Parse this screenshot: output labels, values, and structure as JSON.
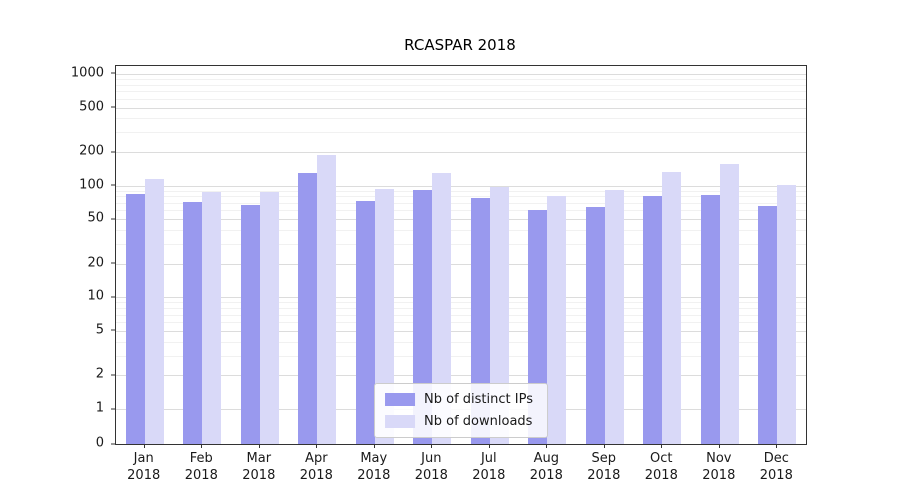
{
  "title": "RCASPAR 2018",
  "chart_data": {
    "type": "bar",
    "title": "RCASPAR 2018",
    "xlabel": "",
    "ylabel": "",
    "yscale": "symlog",
    "ylim": [
      0,
      1200
    ],
    "grid": true,
    "legend_position": "lower center inside plot",
    "y_ticks": [
      0,
      1,
      2,
      5,
      10,
      20,
      50,
      100,
      200,
      500,
      1000
    ],
    "categories": [
      "Jan 2018",
      "Feb 2018",
      "Mar 2018",
      "Apr 2018",
      "May 2018",
      "Jun 2018",
      "Jul 2018",
      "Aug 2018",
      "Sep 2018",
      "Oct 2018",
      "Nov 2018",
      "Dec 2018"
    ],
    "series": [
      {
        "name": "Nb of distinct IPs",
        "color": "#9999ee",
        "values": [
          85,
          72,
          67,
          130,
          73,
          92,
          78,
          60,
          65,
          80,
          83,
          66
        ]
      },
      {
        "name": "Nb of downloads",
        "color": "#d9d9f8",
        "values": [
          115,
          88,
          87,
          190,
          93,
          130,
          98,
          80,
          92,
          133,
          155,
          101
        ]
      }
    ]
  }
}
